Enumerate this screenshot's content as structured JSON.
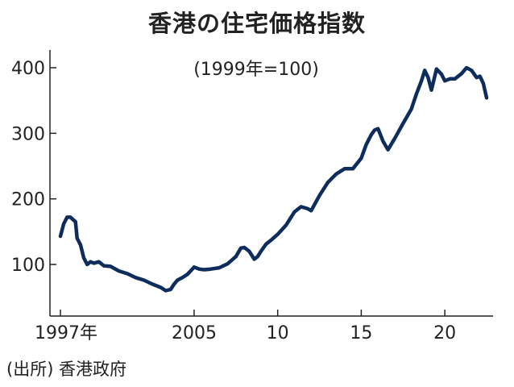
{
  "chart_data": {
    "type": "line",
    "title": "香港の住宅価格指数",
    "unit_note": "(1999年=100)",
    "source": "(出所) 香港政府",
    "xlabel": "",
    "ylabel": "",
    "x_range": [
      1997,
      2022.5
    ],
    "ylim": [
      40,
      420
    ],
    "y_ticks": [
      100,
      200,
      300,
      400
    ],
    "y_tick_labels": [
      "100",
      "200",
      "300",
      "400"
    ],
    "x_ticks": [
      1997,
      2005,
      2010,
      2015,
      2020
    ],
    "x_tick_labels": [
      "1997年",
      "2005",
      "10",
      "15",
      "20"
    ],
    "grid": false,
    "line_color": "#0f2d5c",
    "series": [
      {
        "x": [
          1997.0,
          1997.2,
          1997.4,
          1997.6,
          1997.9,
          1998.0,
          1998.2,
          1998.4,
          1998.6,
          1998.8,
          1999.0,
          1999.3,
          1999.6,
          2000.0,
          2000.5,
          2001.0,
          2001.5,
          2002.0,
          2002.5,
          2003.0,
          2003.3,
          2003.6,
          2003.8,
          2004.0,
          2004.3,
          2004.6,
          2005.0,
          2005.3,
          2005.6,
          2006.0,
          2006.5,
          2007.0,
          2007.5,
          2007.8,
          2008.0,
          2008.3,
          2008.6,
          2008.8,
          2009.0,
          2009.3,
          2009.6,
          2010.0,
          2010.5,
          2011.0,
          2011.4,
          2011.8,
          2012.0,
          2012.5,
          2013.0,
          2013.5,
          2014.0,
          2014.5,
          2015.0,
          2015.3,
          2015.6,
          2015.8,
          2016.0,
          2016.3,
          2016.6,
          2017.0,
          2017.5,
          2018.0,
          2018.3,
          2018.6,
          2018.8,
          2019.0,
          2019.2,
          2019.5,
          2019.8,
          2020.0,
          2020.3,
          2020.6,
          2021.0,
          2021.3,
          2021.6,
          2021.9,
          2022.1,
          2022.3,
          2022.5
        ],
        "values": [
          143,
          162,
          172,
          172,
          165,
          140,
          130,
          110,
          100,
          104,
          102,
          104,
          98,
          97,
          90,
          86,
          80,
          76,
          70,
          65,
          60,
          62,
          70,
          76,
          80,
          85,
          96,
          93,
          92,
          93,
          95,
          101,
          112,
          125,
          126,
          120,
          108,
          112,
          120,
          131,
          137,
          146,
          160,
          180,
          188,
          185,
          182,
          205,
          225,
          238,
          246,
          246,
          262,
          283,
          298,
          305,
          307,
          288,
          275,
          292,
          315,
          337,
          360,
          380,
          396,
          385,
          366,
          398,
          390,
          380,
          383,
          383,
          391,
          400,
          396,
          385,
          387,
          376,
          354
        ]
      }
    ]
  }
}
